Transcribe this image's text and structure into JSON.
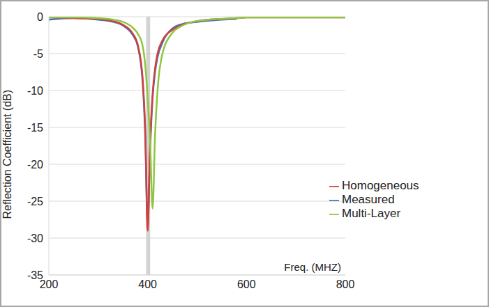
{
  "chart_data": {
    "type": "line",
    "y_label": "Reflection Coefficient (dB)",
    "x_label": "Freq. (MHZ)",
    "x": [
      200,
      250,
      300,
      330,
      350,
      370,
      380,
      390,
      395,
      400,
      405,
      410,
      415,
      420,
      430,
      450,
      470,
      500,
      550,
      580,
      600,
      650,
      700,
      750,
      800
    ],
    "xlim": [
      200,
      800
    ],
    "xticks": [
      200,
      400,
      600,
      800
    ],
    "ylim": [
      -35,
      0
    ],
    "yticks": [
      -35,
      -30,
      -25,
      -20,
      -15,
      -10,
      -5,
      0
    ],
    "grid": true,
    "legend": "lower right",
    "highlight_band": [
      397,
      405
    ],
    "series": [
      {
        "name": "Measured",
        "color": "#4472c4",
        "values": [
          -0.4,
          -0.2,
          -0.4,
          -0.7,
          -1.2,
          -2.5,
          -4,
          -9,
          -16,
          -28,
          -18,
          -11,
          -7.5,
          -5.5,
          -3.5,
          -1.6,
          -1,
          -0.7,
          -0.4,
          -0.3,
          null,
          null,
          null,
          null,
          null
        ]
      },
      {
        "name": "Homogeneous",
        "color": "#d0413c",
        "values": [
          -0.1,
          -0.2,
          -0.3,
          -0.6,
          -1.1,
          -2.3,
          -3.8,
          -8.5,
          -15,
          -29,
          -17,
          -10.5,
          -7,
          -5,
          -3.2,
          -1.8,
          -1.1,
          -0.6,
          -0.3,
          -0.2,
          -0.1,
          -0.1,
          -0.1,
          -0.1,
          -0.1
        ]
      },
      {
        "name": "Multi-Layer",
        "color": "#8fc640",
        "values": [
          -0.1,
          -0.1,
          -0.2,
          -0.4,
          -0.7,
          -1.5,
          -2.3,
          -4,
          -6.5,
          -11,
          -17,
          -26,
          -16,
          -10,
          -5,
          -2.2,
          -1.2,
          -0.6,
          -0.3,
          -0.2,
          -0.1,
          -0.1,
          -0.1,
          -0.1,
          -0.1
        ]
      }
    ]
  }
}
